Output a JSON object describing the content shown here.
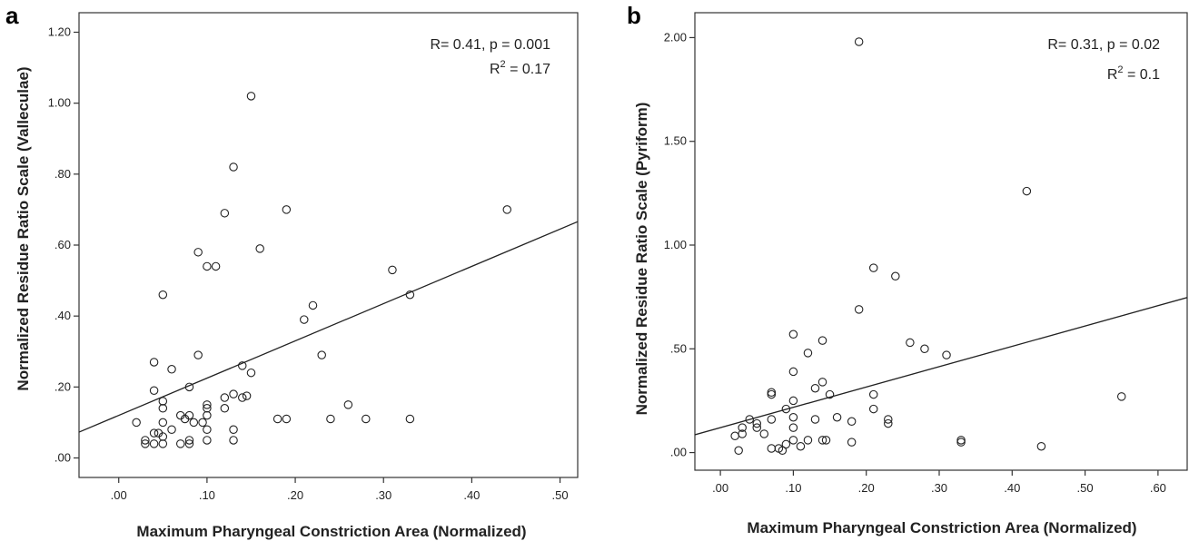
{
  "chart_data": [
    {
      "type": "scatter",
      "panel_label": "a",
      "xlabel": "Maximum Pharyngeal Constriction Area (Normalized)",
      "ylabel": "Normalized Residue Ratio Scale (Valleculae)",
      "xlim": [
        -0.045,
        0.52
      ],
      "ylim": [
        -0.055,
        1.255
      ],
      "x_ticks": [
        0.0,
        0.1,
        0.2,
        0.3,
        0.4,
        0.5
      ],
      "x_tick_labels": [
        ".00",
        ".10",
        ".20",
        ".30",
        ".40",
        ".50"
      ],
      "y_ticks": [
        0.0,
        0.2,
        0.4,
        0.6,
        0.8,
        1.0,
        1.2
      ],
      "y_tick_labels": [
        ".00",
        ".20",
        ".40",
        ".60",
        ".80",
        "1.00",
        "1.20"
      ],
      "annotation_line1": "R= 0.41, p = 0.001",
      "annotation_r2_prefix": "R",
      "annotation_r2_sup": "2",
      "annotation_r2_suffix": " = 0.17",
      "fit_line": {
        "intercept": 0.12,
        "slope": 1.05
      },
      "grid": false,
      "points": [
        [
          0.15,
          1.02
        ],
        [
          0.13,
          0.82
        ],
        [
          0.12,
          0.69
        ],
        [
          0.19,
          0.7
        ],
        [
          0.44,
          0.7
        ],
        [
          0.09,
          0.58
        ],
        [
          0.16,
          0.59
        ],
        [
          0.1,
          0.54
        ],
        [
          0.11,
          0.54
        ],
        [
          0.31,
          0.53
        ],
        [
          0.05,
          0.46
        ],
        [
          0.33,
          0.46
        ],
        [
          0.22,
          0.43
        ],
        [
          0.21,
          0.39
        ],
        [
          0.09,
          0.29
        ],
        [
          0.23,
          0.29
        ],
        [
          0.04,
          0.27
        ],
        [
          0.06,
          0.25
        ],
        [
          0.14,
          0.26
        ],
        [
          0.15,
          0.24
        ],
        [
          0.08,
          0.2
        ],
        [
          0.04,
          0.19
        ],
        [
          0.12,
          0.17
        ],
        [
          0.13,
          0.18
        ],
        [
          0.14,
          0.17
        ],
        [
          0.145,
          0.175
        ],
        [
          0.05,
          0.16
        ],
        [
          0.05,
          0.14
        ],
        [
          0.1,
          0.15
        ],
        [
          0.1,
          0.14
        ],
        [
          0.12,
          0.14
        ],
        [
          0.26,
          0.15
        ],
        [
          0.07,
          0.12
        ],
        [
          0.08,
          0.12
        ],
        [
          0.075,
          0.11
        ],
        [
          0.085,
          0.1
        ],
        [
          0.1,
          0.12
        ],
        [
          0.095,
          0.1
        ],
        [
          0.18,
          0.11
        ],
        [
          0.19,
          0.11
        ],
        [
          0.24,
          0.11
        ],
        [
          0.28,
          0.11
        ],
        [
          0.33,
          0.11
        ],
        [
          0.02,
          0.1
        ],
        [
          0.05,
          0.1
        ],
        [
          0.06,
          0.08
        ],
        [
          0.1,
          0.08
        ],
        [
          0.13,
          0.08
        ],
        [
          0.04,
          0.07
        ],
        [
          0.045,
          0.07
        ],
        [
          0.03,
          0.05
        ],
        [
          0.05,
          0.06
        ],
        [
          0.08,
          0.05
        ],
        [
          0.1,
          0.05
        ],
        [
          0.13,
          0.05
        ],
        [
          0.03,
          0.04
        ],
        [
          0.04,
          0.04
        ],
        [
          0.05,
          0.04
        ],
        [
          0.07,
          0.04
        ],
        [
          0.08,
          0.04
        ]
      ]
    },
    {
      "type": "scatter",
      "panel_label": "b",
      "xlabel": "Maximum Pharyngeal Constriction Area (Normalized)",
      "ylabel": "Normalized Residue Ratio Scale (Pyriform)",
      "xlim": [
        -0.035,
        0.64
      ],
      "ylim": [
        -0.085,
        2.12
      ],
      "x_ticks": [
        0.0,
        0.1,
        0.2,
        0.3,
        0.4,
        0.5,
        0.6
      ],
      "x_tick_labels": [
        ".00",
        ".10",
        ".20",
        ".30",
        ".40",
        ".50",
        ".60"
      ],
      "y_ticks": [
        0.0,
        0.5,
        1.0,
        1.5,
        2.0
      ],
      "y_tick_labels": [
        ".00",
        ".50",
        "1.00",
        "1.50",
        "2.00"
      ],
      "annotation_line1": "R= 0.31, p = 0.02",
      "annotation_r2_prefix": "R",
      "annotation_r2_sup": "2",
      "annotation_r2_suffix": " = 0.1",
      "fit_line": {
        "intercept": 0.12,
        "slope": 0.98
      },
      "grid": false,
      "points": [
        [
          0.19,
          1.98
        ],
        [
          0.42,
          1.26
        ],
        [
          0.21,
          0.89
        ],
        [
          0.24,
          0.85
        ],
        [
          0.19,
          0.69
        ],
        [
          0.1,
          0.57
        ],
        [
          0.14,
          0.54
        ],
        [
          0.26,
          0.53
        ],
        [
          0.28,
          0.5
        ],
        [
          0.12,
          0.48
        ],
        [
          0.31,
          0.47
        ],
        [
          0.1,
          0.39
        ],
        [
          0.14,
          0.34
        ],
        [
          0.13,
          0.31
        ],
        [
          0.07,
          0.29
        ],
        [
          0.07,
          0.28
        ],
        [
          0.15,
          0.28
        ],
        [
          0.21,
          0.28
        ],
        [
          0.55,
          0.27
        ],
        [
          0.1,
          0.25
        ],
        [
          0.09,
          0.21
        ],
        [
          0.21,
          0.21
        ],
        [
          0.1,
          0.17
        ],
        [
          0.16,
          0.17
        ],
        [
          0.04,
          0.16
        ],
        [
          0.07,
          0.16
        ],
        [
          0.13,
          0.16
        ],
        [
          0.18,
          0.15
        ],
        [
          0.23,
          0.16
        ],
        [
          0.05,
          0.14
        ],
        [
          0.23,
          0.14
        ],
        [
          0.03,
          0.12
        ],
        [
          0.05,
          0.12
        ],
        [
          0.1,
          0.12
        ],
        [
          0.06,
          0.09
        ],
        [
          0.03,
          0.09
        ],
        [
          0.02,
          0.08
        ],
        [
          0.1,
          0.06
        ],
        [
          0.12,
          0.06
        ],
        [
          0.14,
          0.06
        ],
        [
          0.145,
          0.06
        ],
        [
          0.33,
          0.06
        ],
        [
          0.33,
          0.05
        ],
        [
          0.18,
          0.05
        ],
        [
          0.09,
          0.04
        ],
        [
          0.11,
          0.03
        ],
        [
          0.44,
          0.03
        ],
        [
          0.07,
          0.02
        ],
        [
          0.08,
          0.02
        ],
        [
          0.085,
          0.01
        ],
        [
          0.025,
          0.01
        ]
      ]
    }
  ]
}
